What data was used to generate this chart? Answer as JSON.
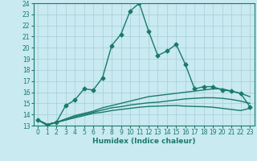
{
  "title": "",
  "xlabel": "Humidex (Indice chaleur)",
  "x": [
    0,
    1,
    2,
    3,
    4,
    5,
    6,
    7,
    8,
    9,
    10,
    11,
    12,
    13,
    14,
    15,
    16,
    17,
    18,
    19,
    20,
    21,
    22,
    23
  ],
  "line1": [
    13.5,
    13.0,
    13.3,
    14.8,
    15.3,
    16.3,
    16.2,
    17.3,
    20.2,
    21.2,
    23.3,
    24.0,
    21.5,
    19.3,
    19.7,
    20.3,
    18.5,
    16.3,
    16.5,
    16.5,
    16.2,
    16.1,
    15.9,
    14.7
  ],
  "line2": [
    13.5,
    13.1,
    13.3,
    13.6,
    13.9,
    14.1,
    14.3,
    14.6,
    14.8,
    15.0,
    15.2,
    15.4,
    15.6,
    15.7,
    15.8,
    15.9,
    16.0,
    16.1,
    16.2,
    16.3,
    16.3,
    16.1,
    15.9,
    15.6
  ],
  "line3": [
    13.5,
    13.1,
    13.3,
    13.5,
    13.8,
    14.0,
    14.2,
    14.4,
    14.6,
    14.7,
    14.85,
    14.95,
    15.05,
    15.1,
    15.2,
    15.3,
    15.4,
    15.45,
    15.5,
    15.5,
    15.45,
    15.35,
    15.2,
    15.0
  ],
  "line4": [
    13.5,
    13.1,
    13.3,
    13.5,
    13.7,
    13.9,
    14.1,
    14.2,
    14.35,
    14.45,
    14.55,
    14.65,
    14.72,
    14.75,
    14.78,
    14.8,
    14.75,
    14.72,
    14.7,
    14.65,
    14.55,
    14.45,
    14.35,
    14.55
  ],
  "line_color": "#1a7a6a",
  "bg_color": "#c8eaf0",
  "grid_color": "#a8cdd8",
  "ylim": [
    13,
    24
  ],
  "xlim": [
    -0.5,
    23.5
  ],
  "yticks": [
    13,
    14,
    15,
    16,
    17,
    18,
    19,
    20,
    21,
    22,
    23,
    24
  ],
  "xticks": [
    0,
    1,
    2,
    3,
    4,
    5,
    6,
    7,
    8,
    9,
    10,
    11,
    12,
    13,
    14,
    15,
    16,
    17,
    18,
    19,
    20,
    21,
    22,
    23
  ],
  "marker": "D",
  "markersize": 2.5,
  "linewidth": 1.0,
  "label_fontsize": 6.5,
  "tick_fontsize": 5.5
}
